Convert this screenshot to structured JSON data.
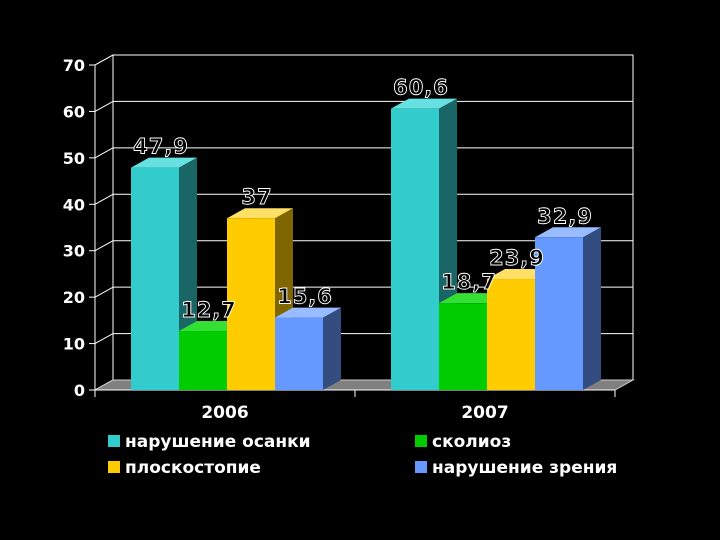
{
  "chart_data": {
    "type": "bar",
    "categories": [
      "2006",
      "2007"
    ],
    "series": [
      {
        "name": "нарушение осанки",
        "values": [
          47.9,
          60.6
        ],
        "labels": [
          "47,9",
          "60,6"
        ],
        "color": "#33CCCC",
        "side": "#1A6666",
        "top": "#66E0E0"
      },
      {
        "name": "сколиоз",
        "values": [
          12.7,
          18.7
        ],
        "labels": [
          "12,7",
          "18,7"
        ],
        "color": "#00CC00",
        "side": "#006600",
        "top": "#33E033"
      },
      {
        "name": "плоскостопие",
        "values": [
          37,
          23.9
        ],
        "labels": [
          "37",
          "23,9"
        ],
        "color": "#FFCC00",
        "side": "#806600",
        "top": "#FFE066"
      },
      {
        "name": "нарушение зрения",
        "values": [
          15.6,
          32.9
        ],
        "labels": [
          "15,6",
          "32,9"
        ],
        "color": "#6699FF",
        "side": "#334D80",
        "top": "#99BBFF"
      }
    ],
    "yticks": [
      "0",
      "10",
      "20",
      "30",
      "40",
      "50",
      "60",
      "70"
    ],
    "ylim": [
      0,
      70
    ],
    "grid": true,
    "legend": "bottom",
    "title": "",
    "xlabel": "",
    "ylabel": ""
  }
}
